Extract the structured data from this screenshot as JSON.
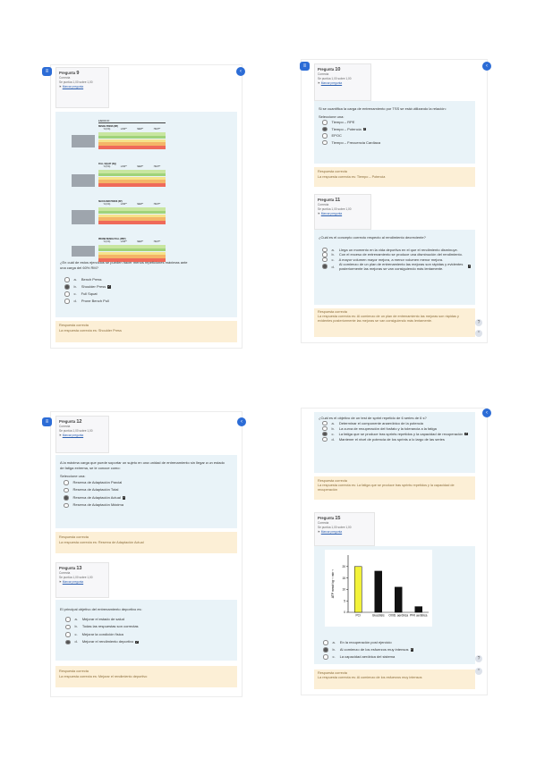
{
  "page1": {
    "question": {
      "label": "Pregunta",
      "number": "9",
      "status": "Correcta",
      "score": "Se puntúa 1,00 sobre 1,00",
      "flag": "Marcar pregunta"
    },
    "text": "¿En cuál de estos ejercicios se pueden hacer menos repeticiones máximas ante una carga del 60% RM?",
    "options": [
      {
        "letter": "a.",
        "label": "Bench Press",
        "selected": false
      },
      {
        "letter": "b.",
        "label": "Shoulder Press",
        "selected": true
      },
      {
        "letter": "c.",
        "label": "Full Squat",
        "selected": false
      },
      {
        "letter": "d.",
        "label": "Prone Bench Pull",
        "selected": false
      }
    ],
    "feedback": {
      "title": "Respuesta correcta",
      "answer": "La respuesta correcta es: Shoulder Press"
    },
    "table": {
      "header": "EJERCICIO",
      "blocks": [
        {
          "name": "BENCH PRESS (BP)"
        },
        {
          "name": "FULL SQUAT (SQ)"
        },
        {
          "name": "SHOULDER PRESS (SP)"
        },
        {
          "name": "PRONE BENCH PULL (PBP)"
        }
      ],
      "cols": [
        "% (1%)",
        "LOW**",
        "MED**",
        "HIGH**"
      ],
      "row_colors": [
        "#c8e6a0",
        "#9fd37a",
        "#f5e38a",
        "#f4b567",
        "#ef6a5a"
      ]
    }
  },
  "page2": {
    "q10": {
      "label": "Pregunta",
      "number": "10",
      "status": "Correcta",
      "score": "Se puntúa 1,00 sobre 1,00",
      "flag": "Marcar pregunta",
      "text": "Si se cuantifica la carga de entrenamiento por TSS se está utilizando la relación:",
      "select": "Seleccione una:",
      "options": [
        {
          "label": "Tiempo – RPE",
          "selected": false
        },
        {
          "label": "Tiempo – Potencia",
          "selected": true
        },
        {
          "label": "EPOC",
          "selected": false
        },
        {
          "label": "Tiempo – Frecuencia Cardiaca",
          "selected": false
        }
      ],
      "feedback": {
        "title": "Respuesta correcta",
        "answer": "La respuesta correcta es: Tiempo – Potencia"
      }
    },
    "q11": {
      "label": "Pregunta",
      "number": "11",
      "status": "Correcta",
      "score": "Se puntúa 1,00 sobre 1,00",
      "flag": "Marcar pregunta",
      "text": "¿Cuál es el concepto correcto respecto al rendimiento decreciente?",
      "options": [
        {
          "letter": "a.",
          "label": "Llega un momento en la vida deportiva en el que el rendimiento disminuye.",
          "selected": false
        },
        {
          "letter": "b.",
          "label": "Con el exceso de entrenamiento se produce una disminución del rendimiento.",
          "selected": false
        },
        {
          "letter": "c.",
          "label": "A mayor volumen mayor mejora, a menor volumen menor mejora.",
          "selected": false
        },
        {
          "letter": "d.",
          "label": "Al comienzo de un plan de entrenamiento las mejoras son rápidas y evidentes posteriormente las mejoras se van consiguiendo más lentamente.",
          "selected": true
        }
      ],
      "feedback": {
        "title": "Respuesta correcta",
        "answer": "La respuesta correcta es: Al comienzo de un plan de entrenamiento las mejoras son rápidas y evidentes posteriormente las mejoras se van consiguiendo más lentamente."
      }
    }
  },
  "page3": {
    "q12": {
      "label": "Pregunta",
      "number": "12",
      "status": "Correcta",
      "score": "Se puntúa 1,00 sobre 1,00",
      "flag": "Marcar pregunta",
      "text": "A la máxima carga que puede soportar un sujeto en una unidad de entrenamiento sin llegar a un estado de fatiga extrema, se le conoce como:",
      "select": "Seleccione una:",
      "options": [
        {
          "label": "Reserva de Adaptación Parcial",
          "selected": false
        },
        {
          "label": "Reserva de Adaptación Total",
          "selected": false
        },
        {
          "label": "Reserva de Adaptación Actual",
          "selected": true
        },
        {
          "label": "Reserva de Adaptación Máxima",
          "selected": false
        }
      ],
      "feedback": {
        "title": "Respuesta correcta",
        "answer": "La respuesta correcta es: Reserva de Adaptación Actual"
      }
    },
    "q13": {
      "label": "Pregunta",
      "number": "13",
      "status": "Correcta",
      "score": "Se puntúa 1,00 sobre 1,00",
      "flag": "Marcar pregunta",
      "text": "El principal objetivo del entrenamiento deportivo es:",
      "options": [
        {
          "letter": "a.",
          "label": "Mejorar el estado de salud",
          "selected": false
        },
        {
          "letter": "b.",
          "label": "Todas las respuestas son correctas",
          "selected": false
        },
        {
          "letter": "c.",
          "label": "Mejorar la condición física",
          "selected": false
        },
        {
          "letter": "d.",
          "label": "Mejorar el rendimiento deportivo",
          "selected": true
        }
      ],
      "feedback": {
        "title": "Respuesta correcta",
        "answer": "La respuesta correcta es: Mejorar el rendimiento deportivo"
      }
    }
  },
  "page4": {
    "q14_text": "¿Cuál es el objetivo de un test de sprint repetido de 6 series de 6 s?",
    "q14_options": [
      {
        "letter": "a.",
        "label": "Determinar el componente anaeróbico de la potencia",
        "selected": false
      },
      {
        "letter": "b.",
        "label": "La curva de recuperación del fosfato y la tolerancia a la fatiga",
        "selected": false
      },
      {
        "letter": "c.",
        "label": "La fatiga que se produce tras sprints repetidos y la capacidad de recuperación",
        "selected": true
      },
      {
        "letter": "d.",
        "label": "Mantener el nivel de potencia de los sprints a lo largo de las series",
        "selected": false
      }
    ],
    "q14_feedback": {
      "title": "Respuesta correcta",
      "answer": "La respuesta correcta es: La fatiga que se produce tras sprints repetidos y la capacidad de recuperación"
    },
    "q15": {
      "label": "Pregunta",
      "number": "15",
      "status": "Correcta",
      "score": "Se puntúa 1,00 sobre 1,00",
      "flag": "Marcar pregunta",
      "options": [
        {
          "letter": "a.",
          "label": "En la recuperación post ejercicio",
          "selected": false
        },
        {
          "letter": "b.",
          "label": "Al comienzo de los esfuerzos muy intensos",
          "selected": true
        },
        {
          "letter": "c.",
          "label": "La capacidad aeróbica del sistema",
          "selected": false
        }
      ],
      "feedback": {
        "title": "Respuesta correcta",
        "answer": "La respuesta correcta es: Al comienzo de los esfuerzos muy intensos"
      }
    },
    "chart_data": {
      "type": "bar",
      "categories": [
        "PCr",
        "Glucólisis",
        "OXID. aeróbica",
        "PFK aeróbica"
      ],
      "values": [
        20,
        18,
        11,
        2.5
      ],
      "ylim": [
        0,
        25
      ],
      "colors": [
        "#f2f23a",
        "#111111",
        "#111111",
        "#111111"
      ],
      "ylabel": "ATP mmol·kg⁻¹ min⁻¹",
      "yticks": [
        0,
        5,
        10,
        15,
        20
      ]
    }
  }
}
